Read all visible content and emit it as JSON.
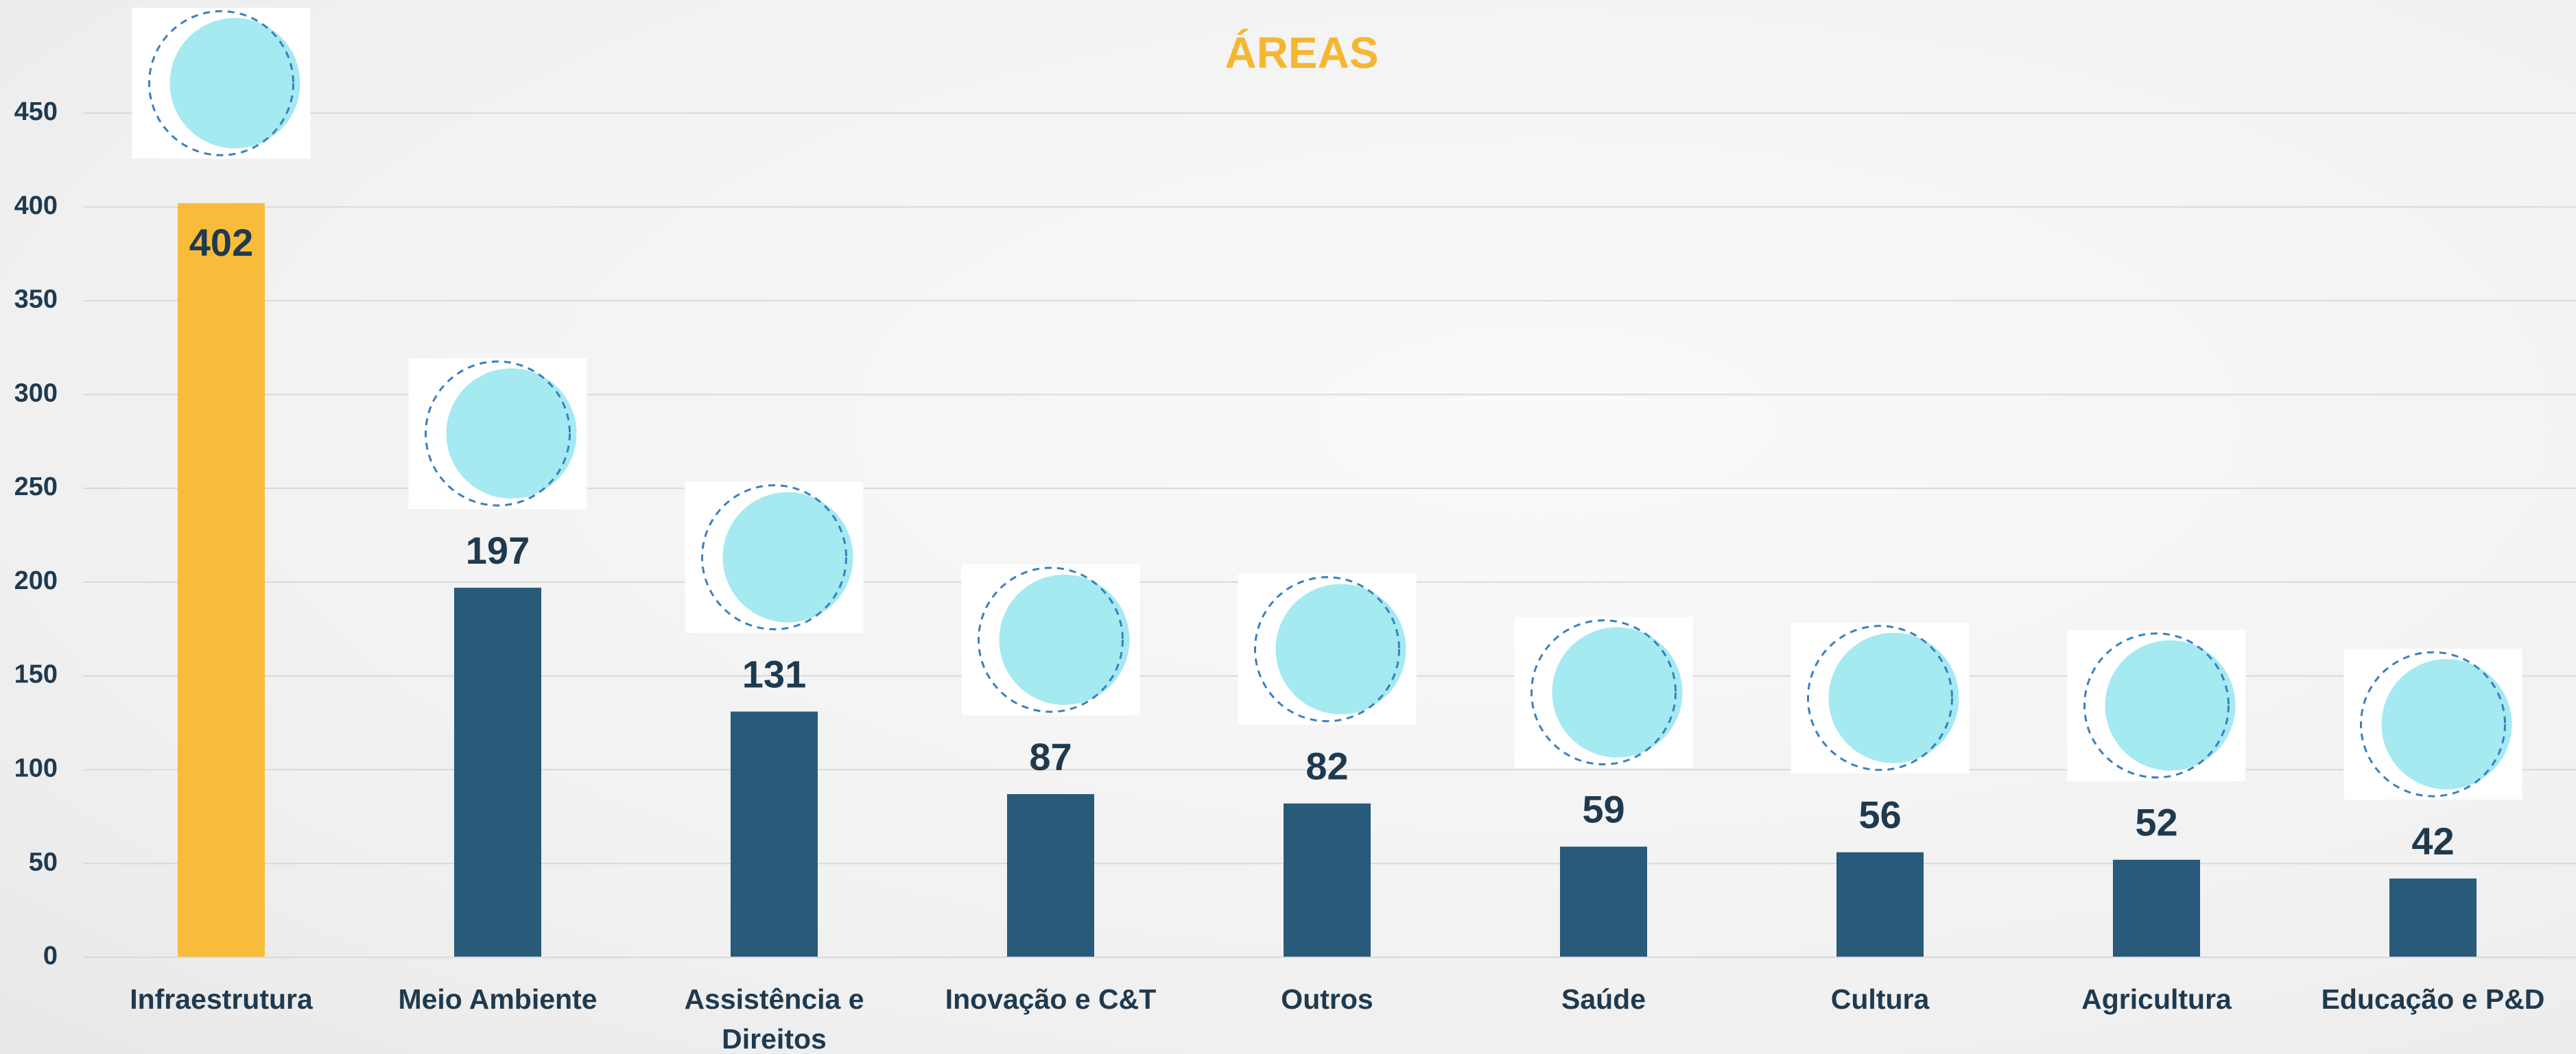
{
  "chart_data": {
    "type": "bar",
    "title": "ÁREAS",
    "categories": [
      "Infraestrutura",
      "Meio Ambiente",
      "Assistência e Direitos",
      "Inovação e C&T",
      "Outros",
      "Saúde",
      "Cultura",
      "Agricultura",
      "Educação e P&D"
    ],
    "values": [
      402,
      197,
      131,
      87,
      82,
      59,
      56,
      52,
      42
    ],
    "colors": [
      "#f8bc3a",
      "#285a7a",
      "#285a7a",
      "#285a7a",
      "#285a7a",
      "#285a7a",
      "#285a7a",
      "#285a7a",
      "#285a7a"
    ],
    "ylim": [
      0,
      450
    ],
    "yticks": [
      0,
      50,
      100,
      150,
      200,
      250,
      300,
      350,
      400,
      450
    ],
    "grid": true
  }
}
